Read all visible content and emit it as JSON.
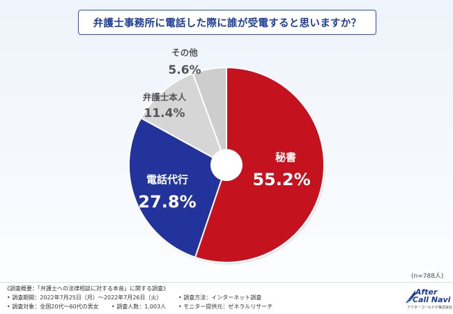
{
  "header": {
    "title": "弁護士事務所に電話した際に誰が受電すると思いますか？"
  },
  "chart_data": {
    "type": "pie",
    "title": "弁護士事務所に電話した際に誰が受電すると思いますか？",
    "categories": [
      "秘書",
      "電話代行",
      "弁護士本人",
      "その他"
    ],
    "values": [
      55.2,
      27.8,
      11.4,
      5.6
    ],
    "labels": [
      "55.2%",
      "27.8%",
      "11.4%",
      "5.6%"
    ],
    "colors": [
      "#c4131f",
      "#22339b",
      "#d6d6d6",
      "#cdcdcd"
    ],
    "sample_size": "(n=788人)"
  },
  "footer": {
    "survey_overview": "《調査概要：「弁護士への法律相談に対する本音」に関する調査》",
    "period": "• 調査期間：2022年7月25日（月）～2022年7月26日（火）",
    "method": "• 調査方法：インターネット調査",
    "target": "• 調査対象：全国20代～60代の男女",
    "count": "• 調査人数：1,003人",
    "provider": "• モニター提供元：ゼネラルリサーチ"
  },
  "logo": {
    "line1": "After",
    "line2": "Call Navi",
    "line3": "アフターコールナビ株式会社"
  }
}
